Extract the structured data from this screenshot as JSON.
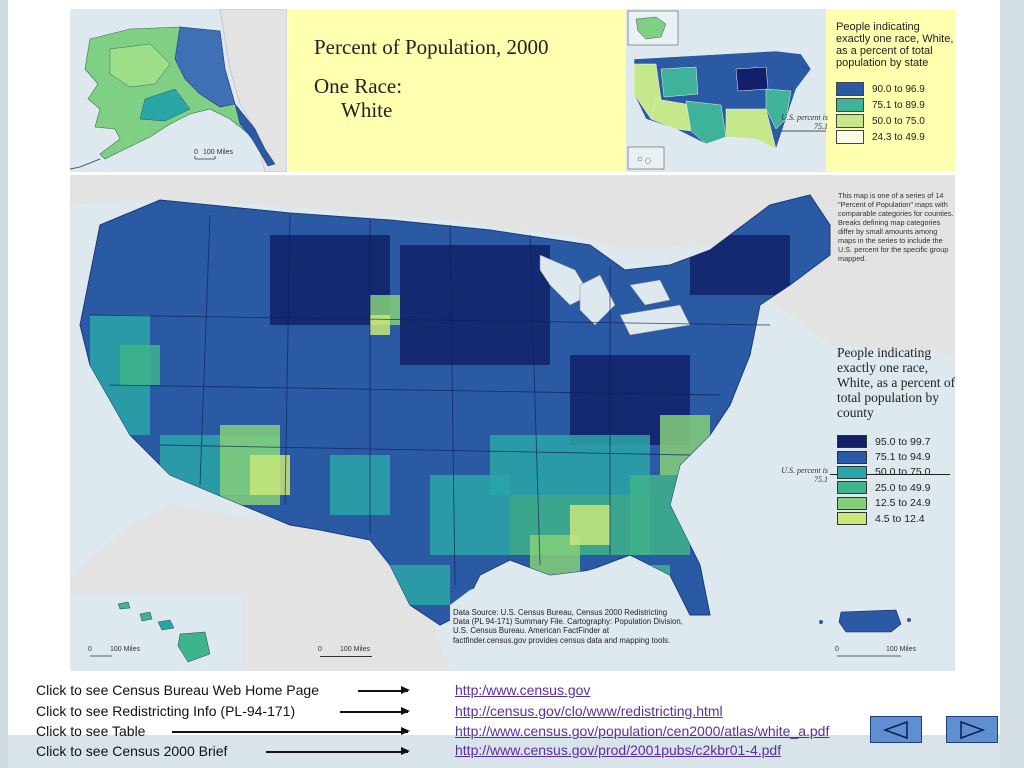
{
  "header": {
    "title": "Percent of Population, 2000",
    "subtitle_line1": "One Race:",
    "subtitle_line2": "White"
  },
  "state_legend": {
    "title": "People indicating exactly one race, White, as a percent of total population by state",
    "us_percent": "U.S. percent is 75.1",
    "classes": [
      {
        "label": "90.0 to 96.9",
        "color": "#2a5aa3"
      },
      {
        "label": "75.1 to 89.9",
        "color": "#3fb39a"
      },
      {
        "label": "50.0 to 75.0",
        "color": "#c5e88a"
      },
      {
        "label": "24.3 to 49.9",
        "color": "#fbfbe8"
      }
    ]
  },
  "county_legend": {
    "title": "People indicating exactly one race, White, as a percent of total population by county",
    "us_percent": "U.S. percent is 75.1",
    "classes": [
      {
        "label": "95.0 to 99.7",
        "color": "#12206a"
      },
      {
        "label": "75.1 to 94.9",
        "color": "#2a5aa3"
      },
      {
        "label": "50.0 to 75.0",
        "color": "#2aa6a8"
      },
      {
        "label": "25.0 to 49.9",
        "color": "#3fb38a"
      },
      {
        "label": "12.5 to 24.9",
        "color": "#86cf7a"
      },
      {
        "label": "4.5 to 12.4",
        "color": "#c8e87a"
      }
    ]
  },
  "map_note": "This map is one of a series of 14 \"Percent of Population\" maps with comparable categories for counties. Breaks defining map categories differ by small amounts among maps in the series to include the U.S. percent for the specific group mapped.",
  "data_source": "Data Source: U.S. Census Bureau, Census 2000 Redistricting Data (PL 94-171) Summary File. Cartography: Population Division, U.S. Census Bureau. American FactFinder at factfinder.census.gov provides census data and mapping tools.",
  "scale_label": "100 Miles",
  "scale_zero": "0",
  "links": [
    {
      "label": "Click to see Census Bureau Web Home Page",
      "url": "http:/www.census.gov "
    },
    {
      "label": "Click to see Redistricting Info (PL-94-171)",
      "url": "http://census.gov/clo/www/redistricting.html"
    },
    {
      "label": "Click to see Table",
      "url": "http://www.census.gov/population/cen2000/atlas/white_a.pdf"
    },
    {
      "label": "Click to see Census 2000 Brief",
      "url": "http://www.census.gov/prod/2001pubs/c2kbr01-4.pdf"
    }
  ],
  "nav": {
    "prev_icon": "triangle-left-icon",
    "next_icon": "triangle-right-icon"
  }
}
